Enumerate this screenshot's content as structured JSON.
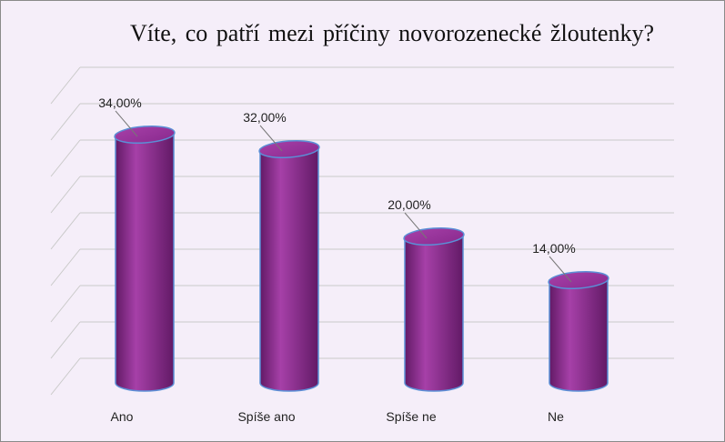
{
  "chart_data": {
    "type": "bar",
    "style": "3d-cylinder",
    "title": "Víte, co patří mezi příčiny novorozenecké žloutenky?",
    "xlabel": "",
    "ylabel": "",
    "categories": [
      "Ano",
      "Spíše ano",
      "Spíše ne",
      "Ne"
    ],
    "values": [
      34,
      32,
      20,
      14
    ],
    "data_labels": [
      "34,00%",
      "32,00%",
      "20,00%",
      "14,00%"
    ],
    "ylim": [
      0,
      40
    ],
    "grid": true,
    "legend": "none",
    "colors": {
      "bar": "#8a2a8e",
      "bar_light": "#a640a8",
      "bar_dark": "#621a66",
      "bar_outline": "#5b8fd6",
      "grid": "#c9c9c9",
      "background": "#f5eef9"
    }
  }
}
